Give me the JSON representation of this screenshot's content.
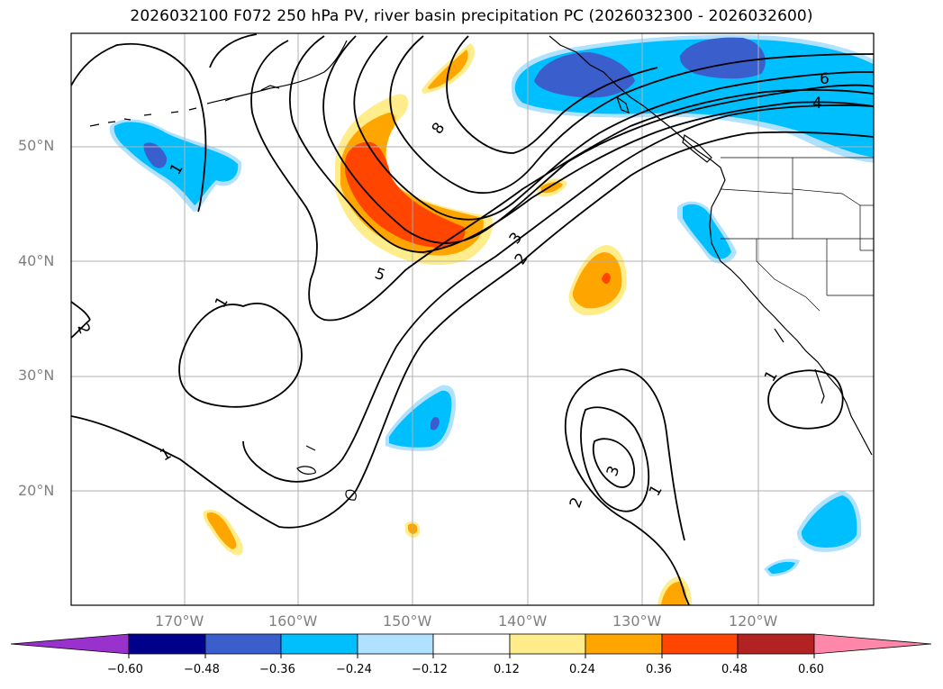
{
  "title": "2026032100 F072 250 hPa PV, river basin precipitation PC (2026032300 - 2026032600)",
  "lat_labels": [
    "50°N",
    "40°N",
    "30°N",
    "20°N"
  ],
  "lon_labels": [
    "170°W",
    "160°W",
    "150°W",
    "140°W",
    "130°W",
    "120°W"
  ],
  "contour_labels": [
    "1",
    "1",
    "1",
    "1",
    "1",
    "2",
    "2",
    "2",
    "3",
    "3",
    "4",
    "5",
    "6",
    "8"
  ],
  "colorbar": {
    "ticks": [
      "−0.60",
      "−0.48",
      "−0.36",
      "−0.24",
      "−0.12",
      "0.12",
      "0.24",
      "0.36",
      "0.48",
      "0.60"
    ],
    "colors": [
      "#9932cc",
      "#00008b",
      "#3a5fcd",
      "#00bfff",
      "#b0e2ff",
      "#ffffff",
      "#ffec8b",
      "#ffa500",
      "#ff4500",
      "#b22222",
      "#ff88aa"
    ]
  }
}
